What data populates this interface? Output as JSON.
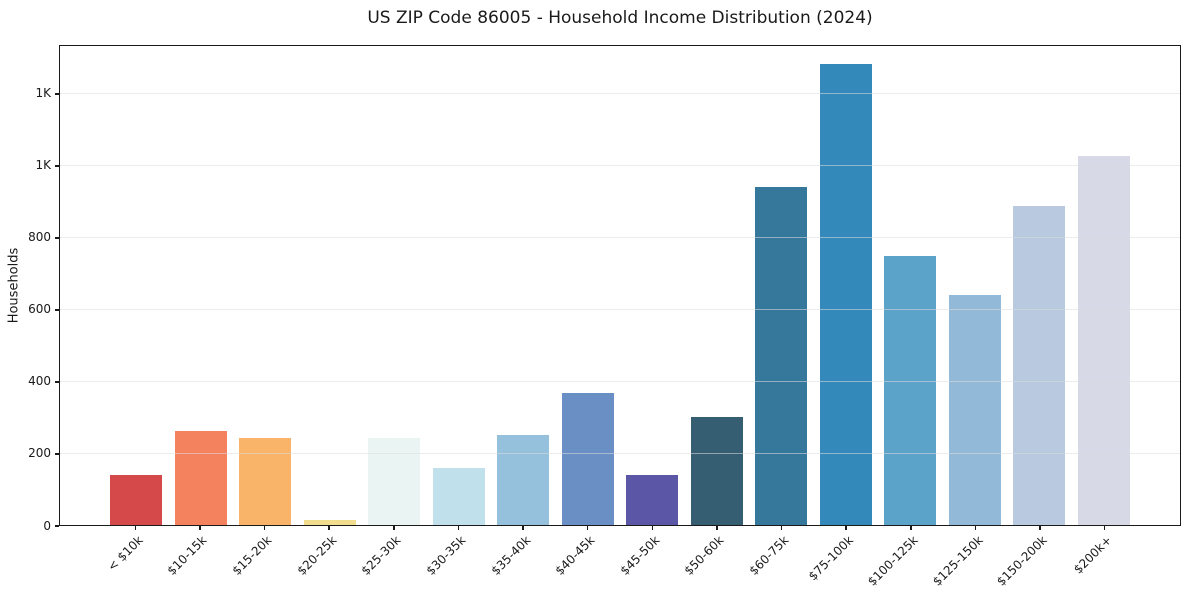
{
  "chart_data": {
    "type": "bar",
    "title": "US ZIP Code 86005 - Household Income Distribution (2024)",
    "xlabel": "",
    "ylabel": "Households",
    "categories": [
      "< $10k",
      "$10-15k",
      "$15-20k",
      "$20-25k",
      "$25-30k",
      "$30-35k",
      "$35-40k",
      "$40-45k",
      "$45-50k",
      "$50-60k",
      "$60-75k",
      "$75-100k",
      "$100-125k",
      "$125-150k",
      "$150-200k",
      "$200k+"
    ],
    "values": [
      140,
      260,
      242,
      15,
      242,
      158,
      250,
      368,
      140,
      300,
      938,
      1280,
      747,
      638,
      887,
      1024
    ],
    "bar_colors": [
      "#d6494b",
      "#f4825f",
      "#f9b46a",
      "#f2dc8e",
      "#eaf4f3",
      "#c0e0eb",
      "#96c1dd",
      "#6a8fc5",
      "#5c56a6",
      "#355e72",
      "#35789c",
      "#3489bb",
      "#5ba3c9",
      "#93b9d8",
      "#b9c9e0",
      "#d7dae6"
    ],
    "ylim": [
      0,
      1336
    ],
    "yticks": [
      {
        "value": 0,
        "label": "0"
      },
      {
        "value": 200,
        "label": "200"
      },
      {
        "value": 400,
        "label": "400"
      },
      {
        "value": 600,
        "label": "600"
      },
      {
        "value": 800,
        "label": "800"
      },
      {
        "value": 1000,
        "label": "1K"
      },
      {
        "value": 1200,
        "label": "1K"
      }
    ],
    "grid": "horizontal",
    "legend": "none",
    "axis_color": "#1a1a1a",
    "grid_color": "#dddddd",
    "background_color": "#ffffff"
  }
}
